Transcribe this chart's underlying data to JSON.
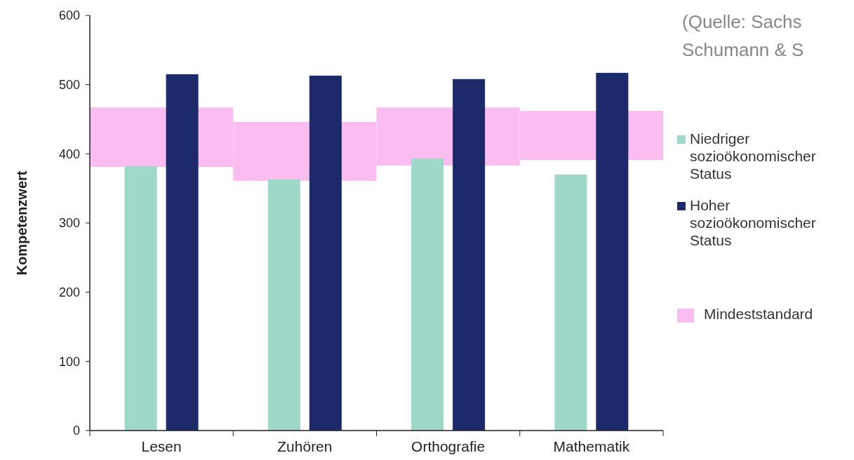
{
  "chart_data": {
    "type": "bar",
    "ylabel": "Kompetenzwert",
    "categories": [
      "Lesen",
      "Zuhören",
      "Orthografie",
      "Mathematik"
    ],
    "series": [
      {
        "name": "Niedriger sozioökonomischer Status",
        "color": "#9ed8c8",
        "values": [
          382,
          363,
          393,
          370
        ]
      },
      {
        "name": "Hoher sozioökonomischer Status",
        "color": "#1c2a6b",
        "values": [
          515,
          513,
          508,
          517
        ]
      },
      {
        "name": "Mindeststandard",
        "color": "#fbbcf0",
        "base": [
          381,
          361,
          383,
          391
        ],
        "values": [
          86,
          85,
          84,
          71
        ]
      }
    ],
    "ylim": [
      0,
      600
    ],
    "yticks": [
      0,
      100,
      200,
      300,
      400,
      500,
      600
    ],
    "grid": false,
    "legend": "right",
    "annotations": [
      "(Quelle: Sachs\nSchumann & S"
    ]
  }
}
